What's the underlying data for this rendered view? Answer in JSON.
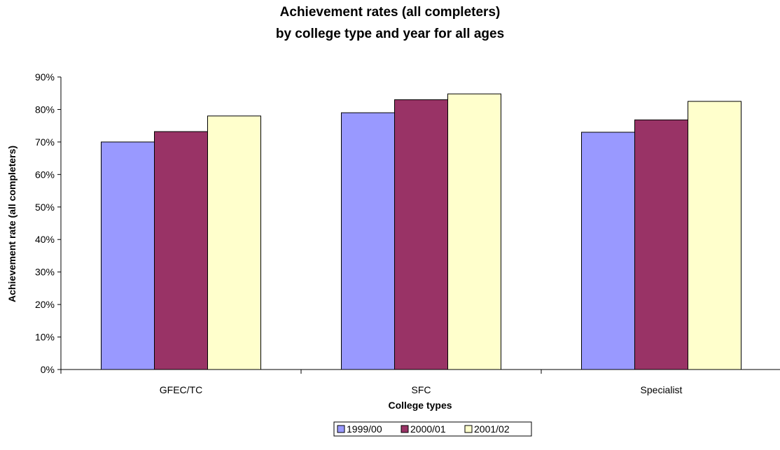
{
  "chart_data": {
    "type": "bar",
    "title": "Achievement rates (all completers)",
    "subtitle": "by college type and year for all ages",
    "xlabel": "College types",
    "ylabel": "Achievement rate (all completers)",
    "categories": [
      "GFEC/TC",
      "SFC",
      "Specialist"
    ],
    "series": [
      {
        "name": "1999/00",
        "color": "#9999FF",
        "values": [
          70,
          79,
          73
        ]
      },
      {
        "name": "2000/01",
        "color": "#993366",
        "values": [
          73.2,
          83,
          76.8
        ]
      },
      {
        "name": "2001/02",
        "color": "#FFFFCC",
        "values": [
          78,
          84.8,
          82.5
        ]
      }
    ],
    "ylim": [
      0,
      90
    ],
    "yticks": [
      {
        "value": 0,
        "label": "0%"
      },
      {
        "value": 10,
        "label": "10%"
      },
      {
        "value": 20,
        "label": "20%"
      },
      {
        "value": 30,
        "label": "30%"
      },
      {
        "value": 40,
        "label": "40%"
      },
      {
        "value": 50,
        "label": "50%"
      },
      {
        "value": 60,
        "label": "60%"
      },
      {
        "value": 70,
        "label": "70%"
      },
      {
        "value": 80,
        "label": "80%"
      },
      {
        "value": 90,
        "label": "90%"
      }
    ],
    "grid": false,
    "legend_position": "bottom"
  }
}
